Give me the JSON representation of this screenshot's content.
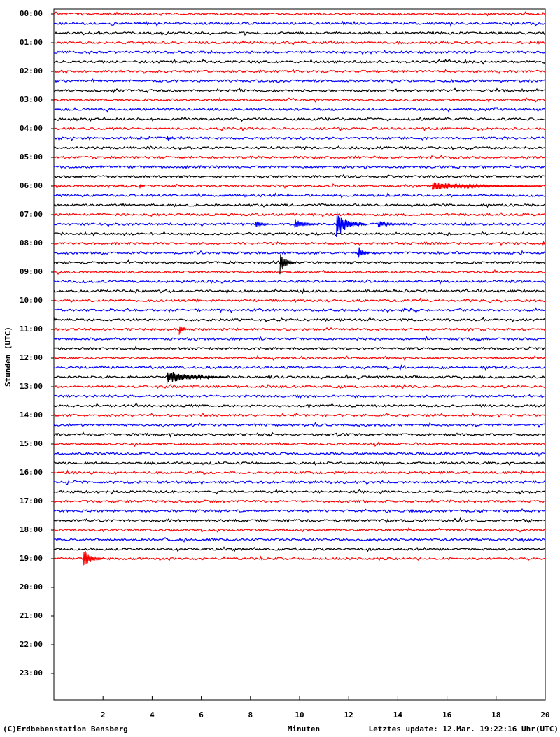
{
  "chart_data": {
    "type": "helicorder",
    "y_label": "Stunden (UTC)",
    "x_label": "Minuten",
    "footer_left": "(C)Erdbebenstation Bensberg",
    "footer_right": "Letztes update: 12.Mar. 19:22:16 Uhr(UTC)",
    "hour_labels": [
      "00:00",
      "01:00",
      "02:00",
      "03:00",
      "04:00",
      "05:00",
      "06:00",
      "07:00",
      "08:00",
      "09:00",
      "10:00",
      "11:00",
      "12:00",
      "13:00",
      "14:00",
      "15:00",
      "16:00",
      "17:00",
      "18:00",
      "19:00",
      "20:00",
      "21:00",
      "22:00",
      "23:00"
    ],
    "xlim": [
      0,
      20
    ],
    "xticks": [
      2,
      4,
      6,
      8,
      10,
      12,
      14,
      16,
      18,
      20
    ],
    "trace_colors": [
      "#ff0000",
      "#0000ff",
      "#000000"
    ],
    "events": [
      {
        "row": 13,
        "minute": 4.6,
        "amplitude": 4,
        "duration": 0.3
      },
      {
        "row": 18,
        "minute": 3.5,
        "amplitude": 4,
        "duration": 0.2
      },
      {
        "row": 18,
        "minute": 15.4,
        "amplitude": 6,
        "duration": 4.5
      },
      {
        "row": 22,
        "minute": 8.2,
        "amplitude": 6,
        "duration": 0.6
      },
      {
        "row": 22,
        "minute": 9.8,
        "amplitude": 8,
        "duration": 1.0
      },
      {
        "row": 22,
        "minute": 11.5,
        "amplitude": 20,
        "duration": 1.2
      },
      {
        "row": 22,
        "minute": 13.2,
        "amplitude": 5,
        "duration": 1.2
      },
      {
        "row": 24,
        "minute": 19.9,
        "amplitude": 6,
        "duration": 0.1
      },
      {
        "row": 25,
        "minute": 12.4,
        "amplitude": 10,
        "duration": 0.5
      },
      {
        "row": 26,
        "minute": 9.2,
        "amplitude": 18,
        "duration": 0.6
      },
      {
        "row": 33,
        "minute": 5.1,
        "amplitude": 10,
        "duration": 0.3
      },
      {
        "row": 38,
        "minute": 4.6,
        "amplitude": 10,
        "duration": 2.5
      },
      {
        "row": 57,
        "minute": 1.2,
        "amplitude": 15,
        "duration": 0.8
      }
    ]
  }
}
